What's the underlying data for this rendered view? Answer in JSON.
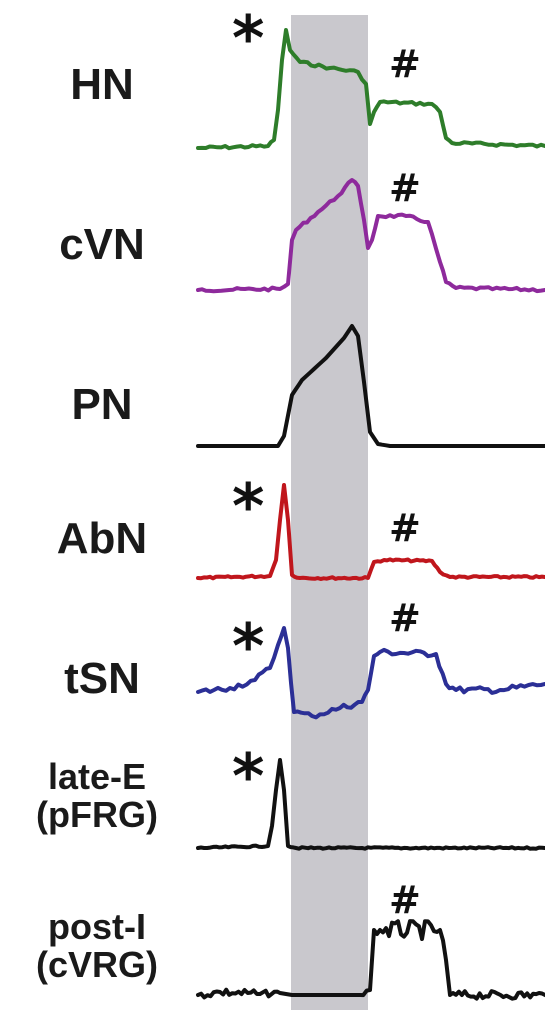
{
  "markers": {
    "asterisk": "*",
    "hash": "#"
  },
  "traces": [
    {
      "key": "HN",
      "label_lines": [
        "HN"
      ],
      "color": "#2e7d2a",
      "asterisk": true,
      "hash": true
    },
    {
      "key": "cVN",
      "label_lines": [
        "cVN"
      ],
      "color": "#8e2a9c",
      "asterisk": false,
      "hash": true
    },
    {
      "key": "PN",
      "label_lines": [
        "PN"
      ],
      "color": "#111111",
      "asterisk": false,
      "hash": false
    },
    {
      "key": "AbN",
      "label_lines": [
        "AbN"
      ],
      "color": "#c0161c",
      "asterisk": true,
      "hash": true
    },
    {
      "key": "tSN",
      "label_lines": [
        "tSN"
      ],
      "color": "#2b2f96",
      "asterisk": true,
      "hash": true
    },
    {
      "key": "lateE",
      "label_lines": [
        "late-E",
        "(pFRG)"
      ],
      "color": "#111111",
      "asterisk": true,
      "hash": false
    },
    {
      "key": "postI",
      "label_lines": [
        "post-I",
        "(cVRG)"
      ],
      "color": "#111111",
      "asterisk": false,
      "hash": true
    }
  ],
  "colors": {
    "inspiration_band": "#c9c8cd",
    "background": "#ffffff"
  }
}
